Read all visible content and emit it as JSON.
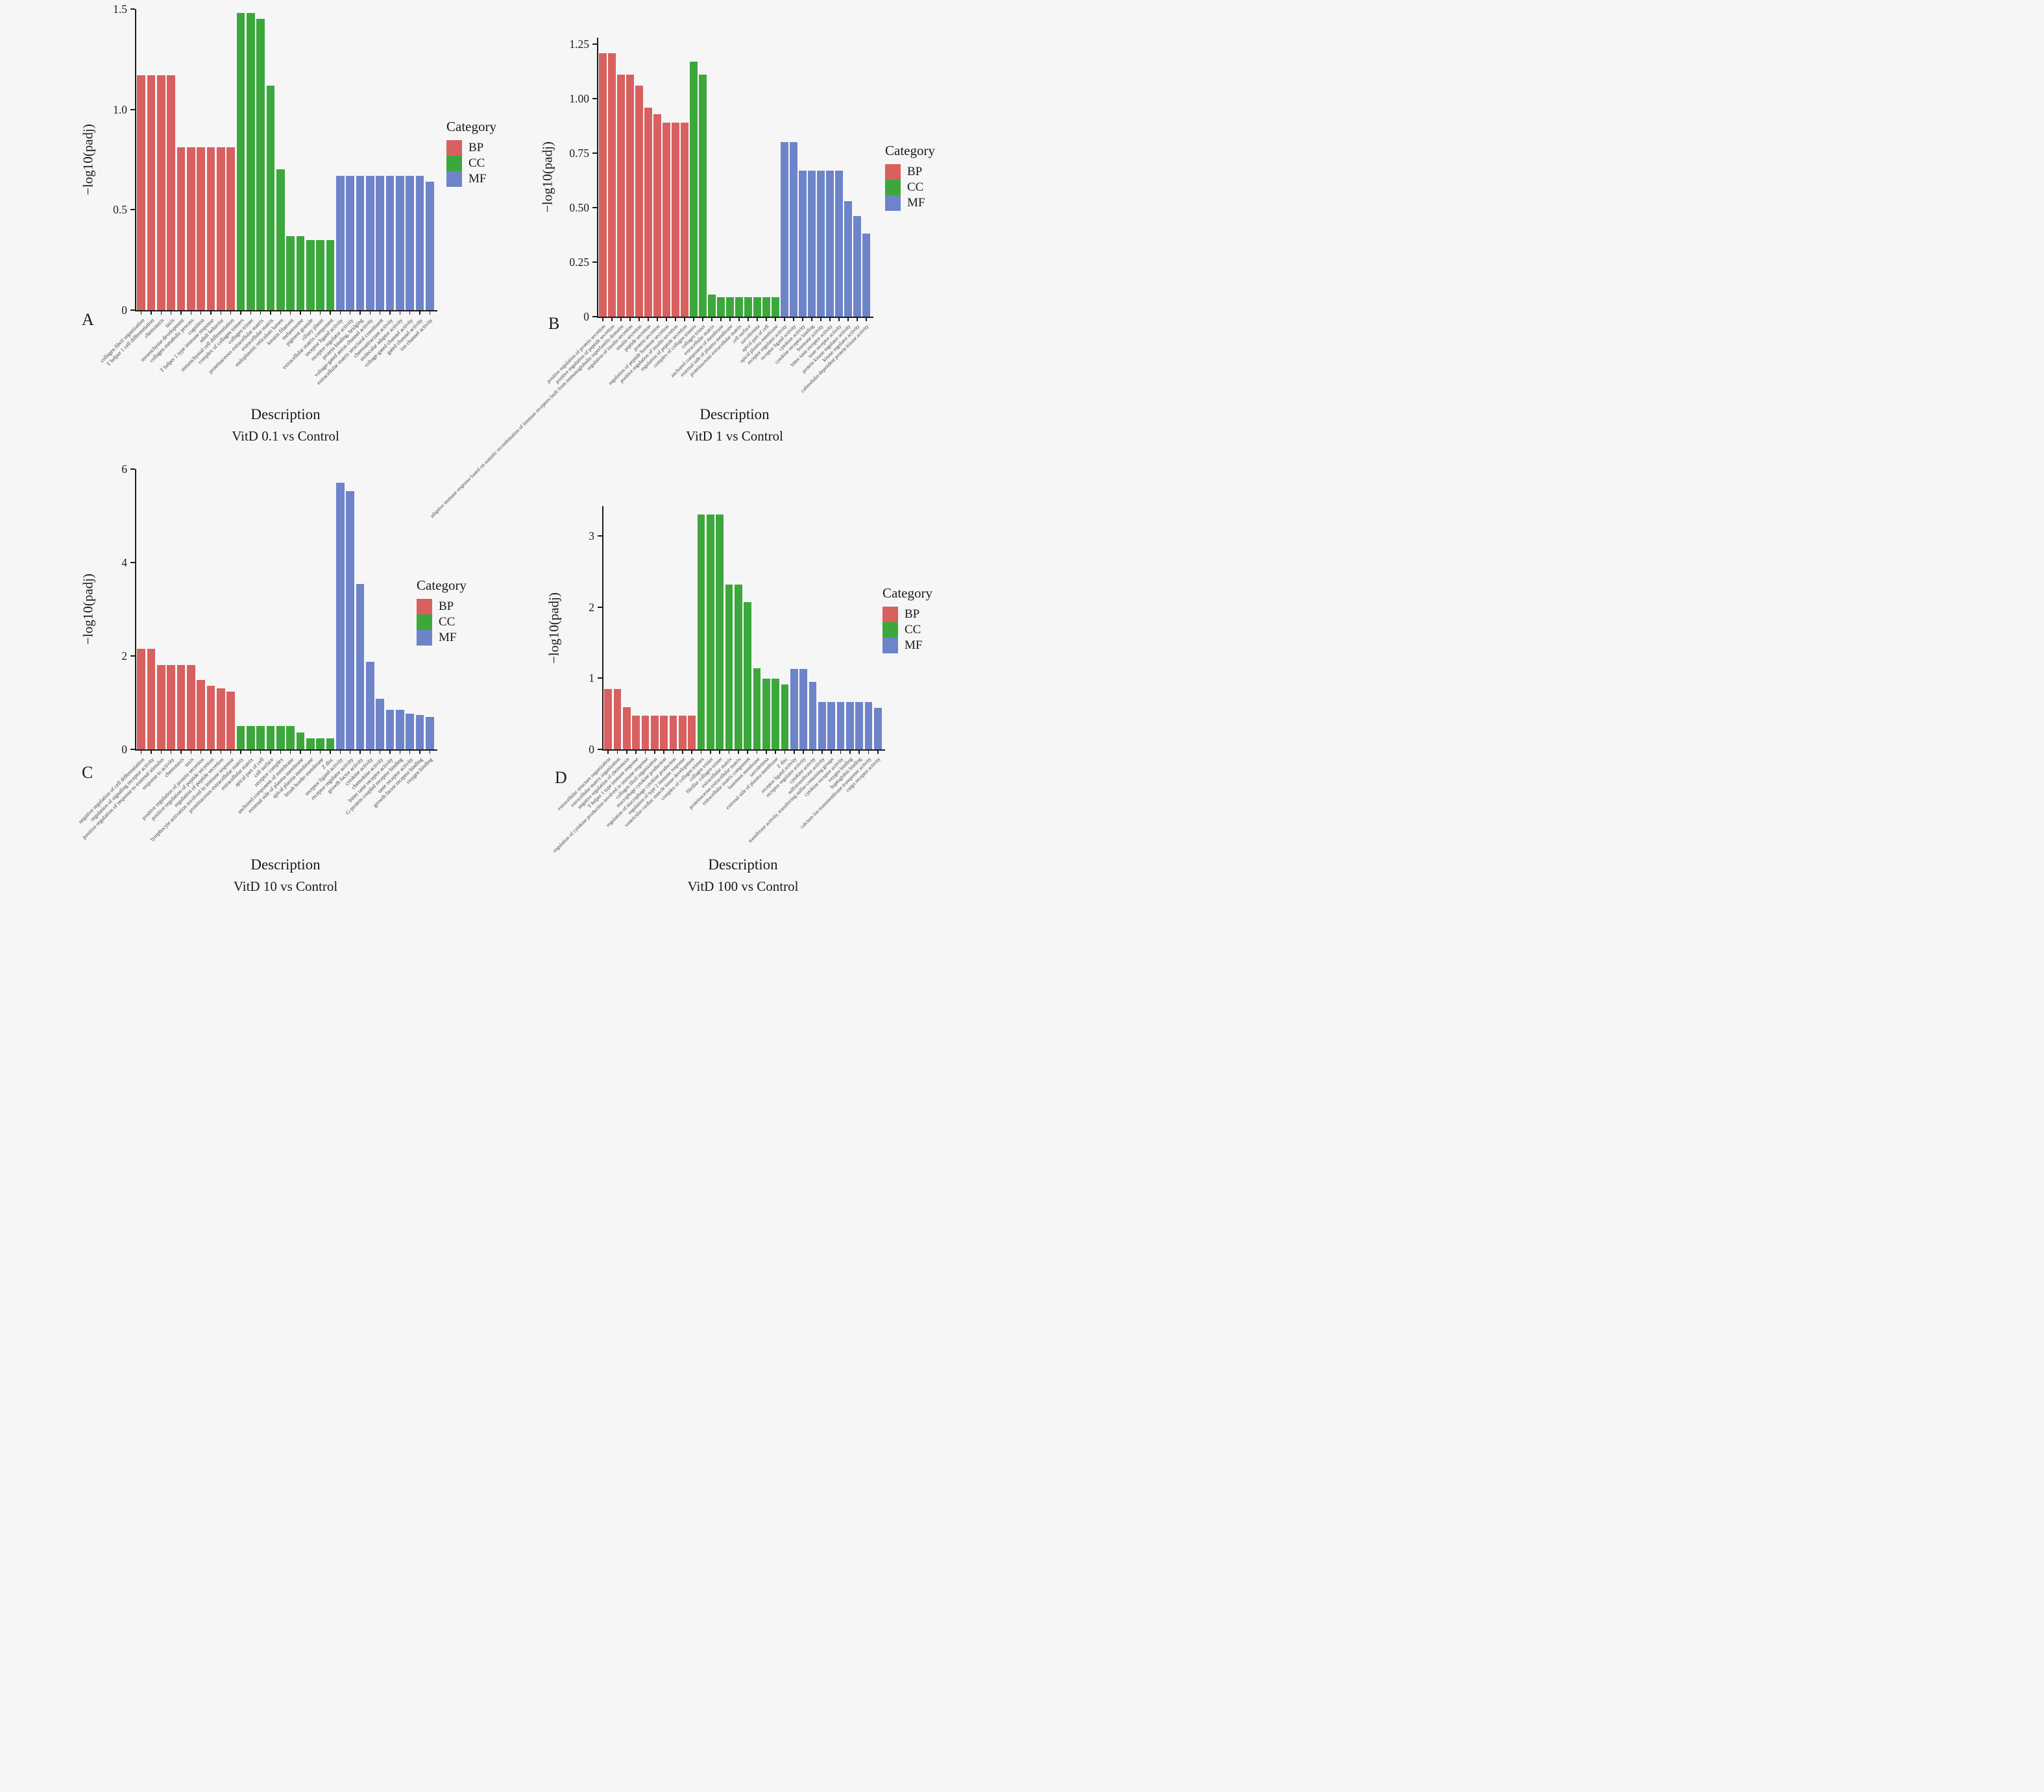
{
  "figure_title": "",
  "ylabel": "−log10(padj)",
  "xlabel": "Description",
  "legend": {
    "title": "Category",
    "items": [
      {
        "label": "BP",
        "color": "#d8605f"
      },
      {
        "label": "CC",
        "color": "#3ca83c"
      },
      {
        "label": "MF",
        "color": "#6d84c9"
      }
    ]
  },
  "chart_data": [
    {
      "type": "bar",
      "panel_letter": "A",
      "title": "VitD 0.1 vs Control",
      "xlabel": "Description",
      "ylabel": "−log10(padj)",
      "ylim": [
        0,
        1.5
      ],
      "yticks": [
        {
          "v": 0,
          "t": "0"
        },
        {
          "v": 0.5,
          "t": "0.5"
        },
        {
          "v": 1.0,
          "t": "1.0"
        },
        {
          "v": 1.5,
          "t": "1.5"
        }
      ],
      "grid": false,
      "legend_position": "right",
      "bars": [
        {
          "label": "collagen fibril organization",
          "category": "BP",
          "value": 1.17
        },
        {
          "label": "T helper 1 cell differentiation",
          "category": "BP",
          "value": 1.17
        },
        {
          "label": "chemotaxis",
          "category": "BP",
          "value": 1.17
        },
        {
          "label": "taxis",
          "category": "BP",
          "value": 1.17
        },
        {
          "label": "mesenchyme development",
          "category": "BP",
          "value": 0.81
        },
        {
          "label": "collagen metabolic process",
          "category": "BP",
          "value": 0.81
        },
        {
          "label": "cognition",
          "category": "BP",
          "value": 0.81
        },
        {
          "label": "T helper 1 type immune response",
          "category": "BP",
          "value": 0.81
        },
        {
          "label": "adult behavior",
          "category": "BP",
          "value": 0.81
        },
        {
          "label": "mesenchymal cell differentiation",
          "category": "BP",
          "value": 0.81
        },
        {
          "label": "complex of collagen trimers",
          "category": "CC",
          "value": 1.48
        },
        {
          "label": "collagen trimer",
          "category": "CC",
          "value": 1.48
        },
        {
          "label": "proteinaceous extracellular matrix",
          "category": "CC",
          "value": 1.45
        },
        {
          "label": "extracellular matrix",
          "category": "CC",
          "value": 1.12
        },
        {
          "label": "endoplasmic reticulum lumen",
          "category": "CC",
          "value": 0.7
        },
        {
          "label": "keratin filament",
          "category": "CC",
          "value": 0.37
        },
        {
          "label": "melanosome",
          "category": "CC",
          "value": 0.37
        },
        {
          "label": "pigment granule",
          "category": "CC",
          "value": 0.35
        },
        {
          "label": "ciliary plasm",
          "category": "CC",
          "value": 0.35
        },
        {
          "label": "extracellular matrix component",
          "category": "CC",
          "value": 0.35
        },
        {
          "label": "receptor ligand activity",
          "category": "MF",
          "value": 0.67
        },
        {
          "label": "receptor regulator activity",
          "category": "MF",
          "value": 0.67
        },
        {
          "label": "protein binding, bridging",
          "category": "MF",
          "value": 0.67
        },
        {
          "label": "voltage-gated anion channel activity",
          "category": "MF",
          "value": 0.67
        },
        {
          "label": "extracellular matrix structural constituent",
          "category": "MF",
          "value": 0.67
        },
        {
          "label": "chemoattractant activity",
          "category": "MF",
          "value": 0.67
        },
        {
          "label": "molecular adaptor activity",
          "category": "MF",
          "value": 0.67
        },
        {
          "label": "voltage-gated channel activity",
          "category": "MF",
          "value": 0.67
        },
        {
          "label": "gated channel activity",
          "category": "MF",
          "value": 0.67
        },
        {
          "label": "ion channel activity",
          "category": "MF",
          "value": 0.64
        }
      ]
    },
    {
      "type": "bar",
      "panel_letter": "B",
      "title": "VitD 1 vs Control",
      "xlabel": "Description",
      "ylabel": "−log10(padj)",
      "ylim": [
        0,
        1.28
      ],
      "yticks": [
        {
          "v": 0,
          "t": "0"
        },
        {
          "v": 0.25,
          "t": "0.25"
        },
        {
          "v": 0.5,
          "t": "0.50"
        },
        {
          "v": 0.75,
          "t": "0.75"
        },
        {
          "v": 1.0,
          "t": "1.00"
        },
        {
          "v": 1.25,
          "t": "1.25"
        }
      ],
      "grid": false,
      "legend_position": "right",
      "bars": [
        {
          "label": "positive regulation of protein secretion",
          "category": "BP",
          "value": 1.21
        },
        {
          "label": "positive regulation of peptide secretion",
          "category": "BP",
          "value": 1.21
        },
        {
          "label": "adaptive immune response based on somatic recombination of immune receptors built from immunoglobulin superfamily domains",
          "category": "BP",
          "value": 1.11
        },
        {
          "label": "regulation of insulin secretion",
          "category": "BP",
          "value": 1.11
        },
        {
          "label": "insulin secretion",
          "category": "BP",
          "value": 1.06
        },
        {
          "label": "peptide secretion",
          "category": "BP",
          "value": 0.96
        },
        {
          "label": "protein secretion",
          "category": "BP",
          "value": 0.93
        },
        {
          "label": "regulation of peptide hormone secretion",
          "category": "BP",
          "value": 0.89
        },
        {
          "label": "positive regulation of insulin secretion",
          "category": "BP",
          "value": 0.89
        },
        {
          "label": "regulation of peptide secretion",
          "category": "BP",
          "value": 0.89
        },
        {
          "label": "complex of collagen trimers",
          "category": "CC",
          "value": 1.17
        },
        {
          "label": "collagen trimer",
          "category": "CC",
          "value": 1.11
        },
        {
          "label": "extracellular matrix",
          "category": "CC",
          "value": 0.1
        },
        {
          "label": "anchored component of membrane",
          "category": "CC",
          "value": 0.09
        },
        {
          "label": "external side of plasma membrane",
          "category": "CC",
          "value": 0.09
        },
        {
          "label": "proteinaceous extracellular matrix",
          "category": "CC",
          "value": 0.09
        },
        {
          "label": "cell surface",
          "category": "CC",
          "value": 0.09
        },
        {
          "label": "sarcolemma",
          "category": "CC",
          "value": 0.09
        },
        {
          "label": "apical part of cell",
          "category": "CC",
          "value": 0.09
        },
        {
          "label": "apical plasma membrane",
          "category": "CC",
          "value": 0.09
        },
        {
          "label": "receptor regulator activity",
          "category": "MF",
          "value": 0.8
        },
        {
          "label": "receptor ligand activity",
          "category": "MF",
          "value": 0.8
        },
        {
          "label": "cytokine activity",
          "category": "MF",
          "value": 0.67
        },
        {
          "label": "cytokine receptor binding",
          "category": "MF",
          "value": 0.67
        },
        {
          "label": "hormone activity",
          "category": "MF",
          "value": 0.67
        },
        {
          "label": "bitter taste receptor activity",
          "category": "MF",
          "value": 0.67
        },
        {
          "label": "taste receptor activity",
          "category": "MF",
          "value": 0.67
        },
        {
          "label": "protein kinase regulator activity",
          "category": "MF",
          "value": 0.53
        },
        {
          "label": "kinase regulator activity",
          "category": "MF",
          "value": 0.46
        },
        {
          "label": "calmodulin-dependent protein kinase activity",
          "category": "MF",
          "value": 0.38
        }
      ]
    },
    {
      "type": "bar",
      "panel_letter": "C",
      "title": "VitD 10 vs Control",
      "xlabel": "Description",
      "ylabel": "−log10(padj)",
      "ylim": [
        0,
        6
      ],
      "yticks": [
        {
          "v": 0,
          "t": "0"
        },
        {
          "v": 2,
          "t": "2"
        },
        {
          "v": 4,
          "t": "4"
        },
        {
          "v": 6,
          "t": "6"
        }
      ],
      "grid": false,
      "legend_position": "right",
      "bars": [
        {
          "label": "negative regulation of cell differentiation",
          "category": "BP",
          "value": 2.15
        },
        {
          "label": "regulation of signaling receptor activity",
          "category": "BP",
          "value": 2.15
        },
        {
          "label": "positive regulation of response to external stimulus",
          "category": "BP",
          "value": 1.81
        },
        {
          "label": "response to activity",
          "category": "BP",
          "value": 1.81
        },
        {
          "label": "chemotaxis",
          "category": "BP",
          "value": 1.81
        },
        {
          "label": "taxis",
          "category": "BP",
          "value": 1.81
        },
        {
          "label": "positive regulation of protein secretion",
          "category": "BP",
          "value": 1.48
        },
        {
          "label": "positive regulation of peptide secretion",
          "category": "BP",
          "value": 1.36
        },
        {
          "label": "regulation of peptide secretion",
          "category": "BP",
          "value": 1.31
        },
        {
          "label": "lymphocyte activation involved in immune response",
          "category": "BP",
          "value": 1.24
        },
        {
          "label": "proteinaceous extracellular matrix",
          "category": "CC",
          "value": 0.5
        },
        {
          "label": "extracellular matrix",
          "category": "CC",
          "value": 0.5
        },
        {
          "label": "apical part of cell",
          "category": "CC",
          "value": 0.5
        },
        {
          "label": "cell surface",
          "category": "CC",
          "value": 0.5
        },
        {
          "label": "receptor complex",
          "category": "CC",
          "value": 0.5
        },
        {
          "label": "anchored component of membrane",
          "category": "CC",
          "value": 0.5
        },
        {
          "label": "external side of plasma membrane",
          "category": "CC",
          "value": 0.36
        },
        {
          "label": "apical plasma membrane",
          "category": "CC",
          "value": 0.23
        },
        {
          "label": "brush border membrane",
          "category": "CC",
          "value": 0.23
        },
        {
          "label": "Z disc",
          "category": "CC",
          "value": 0.23
        },
        {
          "label": "receptor ligand activity",
          "category": "MF",
          "value": 5.71
        },
        {
          "label": "receptor regulator activity",
          "category": "MF",
          "value": 5.53
        },
        {
          "label": "growth factor activity",
          "category": "MF",
          "value": 3.54
        },
        {
          "label": "cytokine activity",
          "category": "MF",
          "value": 1.88
        },
        {
          "label": "chemokine activity",
          "category": "MF",
          "value": 1.08
        },
        {
          "label": "bitter taste receptor activity",
          "category": "MF",
          "value": 0.85
        },
        {
          "label": "G-protein coupled receptor binding",
          "category": "MF",
          "value": 0.85
        },
        {
          "label": "taste receptor activity",
          "category": "MF",
          "value": 0.77
        },
        {
          "label": "growth factor receptor binding",
          "category": "MF",
          "value": 0.74
        },
        {
          "label": "oxygen binding",
          "category": "MF",
          "value": 0.7
        }
      ]
    },
    {
      "type": "bar",
      "panel_letter": "D",
      "title": "VitD 100 vs Control",
      "xlabel": "Description",
      "ylabel": "−log10(padj)",
      "ylim": [
        0,
        3.42
      ],
      "yticks": [
        {
          "v": 0,
          "t": "0"
        },
        {
          "v": 1,
          "t": "1"
        },
        {
          "v": 2,
          "t": "2"
        },
        {
          "v": 3,
          "t": "3"
        }
      ],
      "grid": false,
      "legend_position": "right",
      "bars": [
        {
          "label": "extracellular structure organization",
          "category": "BP",
          "value": 0.85
        },
        {
          "label": "extracellular matrix organization",
          "category": "BP",
          "value": 0.85
        },
        {
          "label": "negative regulation of chemotaxis",
          "category": "BP",
          "value": 0.59
        },
        {
          "label": "T helper 1 type immune response",
          "category": "BP",
          "value": 0.47
        },
        {
          "label": "regulation of cytokine production involved in immune response",
          "category": "BP",
          "value": 0.47
        },
        {
          "label": "collagen fibril organization",
          "category": "BP",
          "value": 0.47
        },
        {
          "label": "macrophage cytokine production",
          "category": "BP",
          "value": 0.47
        },
        {
          "label": "regulation of macrophage cytokine production",
          "category": "BP",
          "value": 0.47
        },
        {
          "label": "regulation of type 2 immune response",
          "category": "BP",
          "value": 0.47
        },
        {
          "label": "ventricular cardiac muscle tissue development",
          "category": "BP",
          "value": 0.47
        },
        {
          "label": "complex of collagen trimers",
          "category": "CC",
          "value": 3.3
        },
        {
          "label": "collagen trimer",
          "category": "CC",
          "value": 3.3
        },
        {
          "label": "fibrillar collagen trimer",
          "category": "CC",
          "value": 3.3
        },
        {
          "label": "extracellular matrix",
          "category": "CC",
          "value": 2.32
        },
        {
          "label": "proteinaceous extracellular matrix",
          "category": "CC",
          "value": 2.32
        },
        {
          "label": "extracellular matrix component",
          "category": "CC",
          "value": 2.07
        },
        {
          "label": "basement membrane",
          "category": "CC",
          "value": 1.14
        },
        {
          "label": "sarcolemma",
          "category": "CC",
          "value": 0.99
        },
        {
          "label": "external side of plasma membrane",
          "category": "CC",
          "value": 0.99
        },
        {
          "label": "Z disc",
          "category": "CC",
          "value": 0.91
        },
        {
          "label": "receptor ligand activity",
          "category": "MF",
          "value": 1.13
        },
        {
          "label": "receptor regulator activity",
          "category": "MF",
          "value": 1.13
        },
        {
          "label": "cytokine activity",
          "category": "MF",
          "value": 0.95
        },
        {
          "label": "sulfotransferase activity",
          "category": "MF",
          "value": 0.67
        },
        {
          "label": "transferase activity, transferring sulfur-containing groups",
          "category": "MF",
          "value": 0.67
        },
        {
          "label": "cytokine receptor activity",
          "category": "MF",
          "value": 0.67
        },
        {
          "label": "oxygen binding",
          "category": "MF",
          "value": 0.67
        },
        {
          "label": "haptoglobin binding",
          "category": "MF",
          "value": 0.67
        },
        {
          "label": "calcium ion transmembrane transporter activity",
          "category": "MF",
          "value": 0.67
        },
        {
          "label": "cargo receptor activity",
          "category": "MF",
          "value": 0.58
        }
      ]
    }
  ]
}
